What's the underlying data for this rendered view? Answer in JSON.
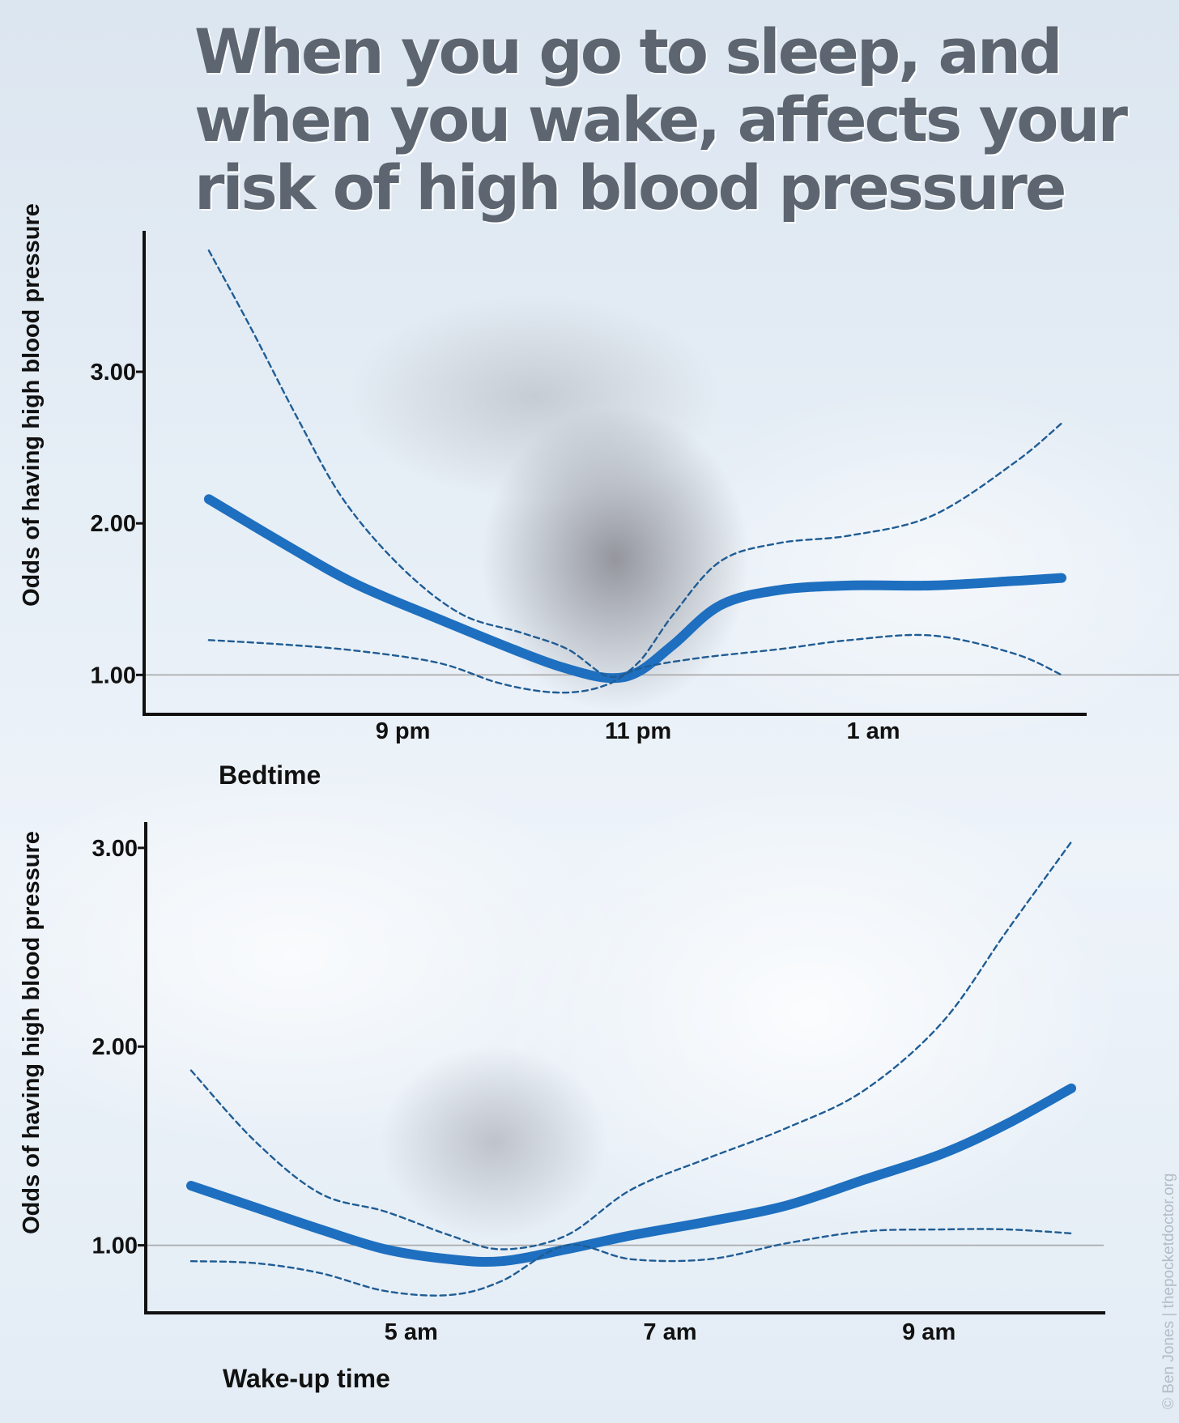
{
  "title": "When you go to sleep, and when you wake, affects your risk of high blood pressure",
  "credit": "© Ben Jones | thepocketdoctor.org",
  "colors": {
    "main_line": "#1e6fbf",
    "ci_line": "#1f5c94",
    "reference_line": "#a8a8a8",
    "axis": "#111111"
  },
  "chart_data": [
    {
      "type": "line",
      "xlabel": "Bedtime",
      "ylabel": "Odds of having high blood pressure",
      "x_ticks": [
        {
          "label": "9 pm",
          "x": 21
        },
        {
          "label": "11 pm",
          "x": 23
        },
        {
          "label": "1 am",
          "x": 25
        }
      ],
      "xlim": [
        18.8,
        26.8
      ],
      "y_ticks": [
        1.0,
        2.0,
        3.0
      ],
      "y_tick_labels": [
        "1.00",
        "2.00",
        "3.00"
      ],
      "ylim": [
        0.74,
        3.93
      ],
      "reference_y": 1.0,
      "series": [
        {
          "style": "estimate",
          "x": [
            19.35,
            20.0,
            20.6,
            21.3,
            22.0,
            22.4,
            22.75,
            23.0,
            23.3,
            23.7,
            24.2,
            24.8,
            25.5,
            26.2,
            26.6
          ],
          "y": [
            2.16,
            1.86,
            1.6,
            1.37,
            1.15,
            1.04,
            0.98,
            1.02,
            1.2,
            1.46,
            1.56,
            1.59,
            1.59,
            1.62,
            1.64
          ]
        },
        {
          "style": "ci-upper",
          "x": [
            19.35,
            19.7,
            20.1,
            20.5,
            21.0,
            21.5,
            22.0,
            22.4,
            22.75,
            23.0,
            23.3,
            23.7,
            24.2,
            24.8,
            25.5,
            26.2,
            26.6
          ],
          "y": [
            3.8,
            3.3,
            2.7,
            2.15,
            1.7,
            1.4,
            1.28,
            1.17,
            0.99,
            1.08,
            1.4,
            1.75,
            1.87,
            1.92,
            2.05,
            2.4,
            2.66
          ]
        },
        {
          "style": "ci-lower",
          "x": [
            19.35,
            20.0,
            20.6,
            21.3,
            21.8,
            22.2,
            22.5,
            22.75,
            23.0,
            23.5,
            24.2,
            24.8,
            25.5,
            26.2,
            26.6
          ],
          "y": [
            1.23,
            1.2,
            1.16,
            1.08,
            0.95,
            0.89,
            0.89,
            0.94,
            1.04,
            1.11,
            1.17,
            1.23,
            1.26,
            1.14,
            1.0
          ]
        }
      ]
    },
    {
      "type": "line",
      "xlabel": "Wake-up time",
      "ylabel": "Odds of having high blood pressure",
      "x_ticks": [
        {
          "label": "5 am",
          "x": 5
        },
        {
          "label": "7 am",
          "x": 7
        },
        {
          "label": "9 am",
          "x": 9
        }
      ],
      "xlim": [
        2.95,
        10.35
      ],
      "y_ticks": [
        1.0,
        2.0,
        3.0
      ],
      "y_tick_labels": [
        "1.00",
        "2.00",
        "3.00"
      ],
      "ylim": [
        0.66,
        3.13
      ],
      "reference_y": 1.0,
      "series": [
        {
          "style": "estimate",
          "x": [
            3.3,
            3.8,
            4.3,
            4.8,
            5.3,
            5.7,
            6.2,
            6.7,
            7.3,
            7.9,
            8.5,
            9.1,
            9.6,
            10.1
          ],
          "y": [
            1.3,
            1.19,
            1.08,
            0.98,
            0.93,
            0.92,
            0.98,
            1.05,
            1.12,
            1.2,
            1.33,
            1.46,
            1.61,
            1.79
          ]
        },
        {
          "style": "ci-upper",
          "x": [
            3.3,
            3.8,
            4.3,
            4.8,
            5.3,
            5.7,
            6.2,
            6.7,
            7.3,
            7.9,
            8.5,
            9.1,
            9.6,
            10.1
          ],
          "y": [
            1.88,
            1.52,
            1.26,
            1.17,
            1.05,
            0.98,
            1.05,
            1.28,
            1.44,
            1.59,
            1.78,
            2.12,
            2.58,
            3.03
          ]
        },
        {
          "style": "ci-lower",
          "x": [
            3.3,
            3.8,
            4.3,
            4.8,
            5.3,
            5.7,
            6.2,
            6.7,
            7.3,
            7.9,
            8.5,
            9.1,
            9.6,
            10.1
          ],
          "y": [
            0.92,
            0.91,
            0.86,
            0.77,
            0.75,
            0.82,
            1.0,
            0.93,
            0.93,
            1.01,
            1.07,
            1.08,
            1.08,
            1.06
          ]
        }
      ]
    }
  ]
}
